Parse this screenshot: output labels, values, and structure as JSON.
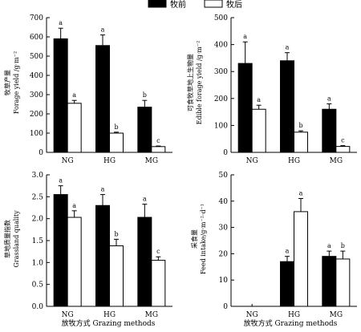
{
  "legend": {
    "before": "牧前",
    "after": "牧后"
  },
  "colors": {
    "before": "#000000",
    "after": "#ffffff",
    "axis": "#000000"
  },
  "xtitle": "放牧方式 Grazing methods",
  "chart_data": [
    {
      "type": "bar",
      "ylabel_cn": "牧草产量",
      "ylabel_en": "Forage yield /g·m⁻²",
      "categories": [
        "NG",
        "HG",
        "MG"
      ],
      "ylim": [
        0,
        700
      ],
      "yticks": [
        0,
        100,
        200,
        300,
        400,
        500,
        600,
        700
      ],
      "series": [
        {
          "name": "牧前",
          "values": [
            590,
            555,
            235
          ],
          "errors": [
            55,
            55,
            35
          ],
          "letters": [
            "a",
            "a",
            "b"
          ]
        },
        {
          "name": "牧后",
          "values": [
            255,
            100,
            30
          ],
          "errors": [
            15,
            5,
            3
          ],
          "letters": [
            "a",
            "b",
            "c"
          ]
        }
      ]
    },
    {
      "type": "bar",
      "ylabel_cn": "可食牧草地上生物量",
      "ylabel_en": "Edible forage yield /g·m⁻²",
      "categories": [
        "NG",
        "HG",
        "MG"
      ],
      "ylim": [
        0,
        500
      ],
      "yticks": [
        0,
        100,
        200,
        300,
        400,
        500
      ],
      "series": [
        {
          "name": "牧前",
          "values": [
            330,
            340,
            160
          ],
          "errors": [
            80,
            30,
            20
          ],
          "letters": [
            "a",
            "a",
            "a"
          ]
        },
        {
          "name": "牧后",
          "values": [
            160,
            75,
            22
          ],
          "errors": [
            15,
            5,
            3
          ],
          "letters": [
            "a",
            "b",
            "c"
          ]
        }
      ]
    },
    {
      "type": "bar",
      "ylabel_cn": "草地质量指数",
      "ylabel_en": "Grassland quality",
      "categories": [
        "NG",
        "HG",
        "MG"
      ],
      "ylim": [
        0,
        3.0
      ],
      "yticks": [
        0,
        0.5,
        1.0,
        1.5,
        2.0,
        2.5,
        3.0
      ],
      "tick_decimals": 1,
      "series": [
        {
          "name": "牧前",
          "values": [
            2.55,
            2.3,
            2.03
          ],
          "errors": [
            0.2,
            0.25,
            0.3
          ],
          "letters": [
            "a",
            "a",
            "a"
          ]
        },
        {
          "name": "牧后",
          "values": [
            2.03,
            1.38,
            1.05
          ],
          "errors": [
            0.15,
            0.15,
            0.08
          ],
          "letters": [
            "a",
            "b",
            "c"
          ]
        }
      ]
    },
    {
      "type": "bar",
      "ylabel_cn": "采食量",
      "ylabel_en": "Feed intake/g·m⁻²·d⁻¹",
      "categories": [
        "NG",
        "HG",
        "MG"
      ],
      "ylim": [
        0,
        50
      ],
      "yticks": [
        0,
        10,
        20,
        30,
        40,
        50
      ],
      "series": [
        {
          "name": "牧前",
          "values": [
            0,
            17,
            19
          ],
          "errors": [
            0,
            2,
            2
          ],
          "letters": [
            "",
            "a",
            "a"
          ]
        },
        {
          "name": "牧后",
          "values": [
            0,
            36,
            18
          ],
          "errors": [
            0,
            5,
            3
          ],
          "letters": [
            "",
            "a",
            "b"
          ]
        }
      ]
    }
  ]
}
